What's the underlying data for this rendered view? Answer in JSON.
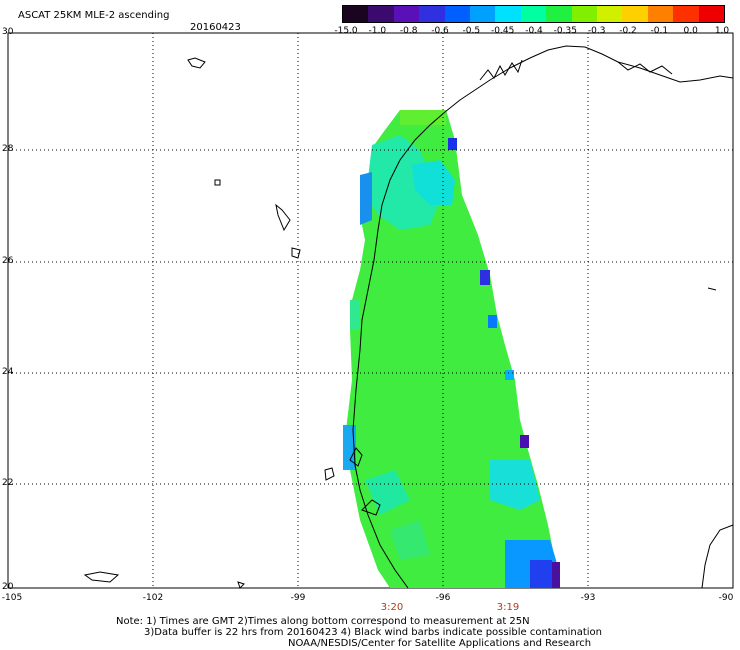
{
  "header": {
    "title": "ASCAT 25KM MLE-2 ascending",
    "date": "20160423"
  },
  "colorbar": {
    "labels": [
      "-15.0",
      "-1.0",
      "-0.8",
      "-0.6",
      "-0.5",
      "-0.45",
      "-0.4",
      "-0.35",
      "-0.3",
      "-0.2",
      "-0.1",
      "0.0",
      "1.0"
    ],
    "colors": [
      "#1a0520",
      "#3b0a6e",
      "#5a10b8",
      "#3030e0",
      "#0060ff",
      "#00a0ff",
      "#00e0ff",
      "#00ffa0",
      "#20f040",
      "#80f000",
      "#d0f000",
      "#ffd000",
      "#ff8000",
      "#ff3000",
      "#ee0000"
    ]
  },
  "axes": {
    "lat_labels": [
      "30",
      "28",
      "26",
      "24",
      "22",
      "20"
    ],
    "lon_labels": [
      "-105",
      "-102",
      "-99",
      "-96",
      "-93",
      "-90"
    ],
    "lat_range": [
      20,
      30
    ],
    "lon_range": [
      -105,
      -90
    ],
    "grid": "dotted"
  },
  "times": [
    {
      "label": "3:20"
    },
    {
      "label": "3:19"
    }
  ],
  "notes": {
    "line1": "Note: 1) Times are GMT 2)Times along bottom correspond to measurement at 25N",
    "line2": "3)Data buffer is 22 hrs from 20160423 4) Black wind barbs indicate possible contamination",
    "line3": "NOAA/NESDIS/Center for Satellite Applications and Research"
  }
}
